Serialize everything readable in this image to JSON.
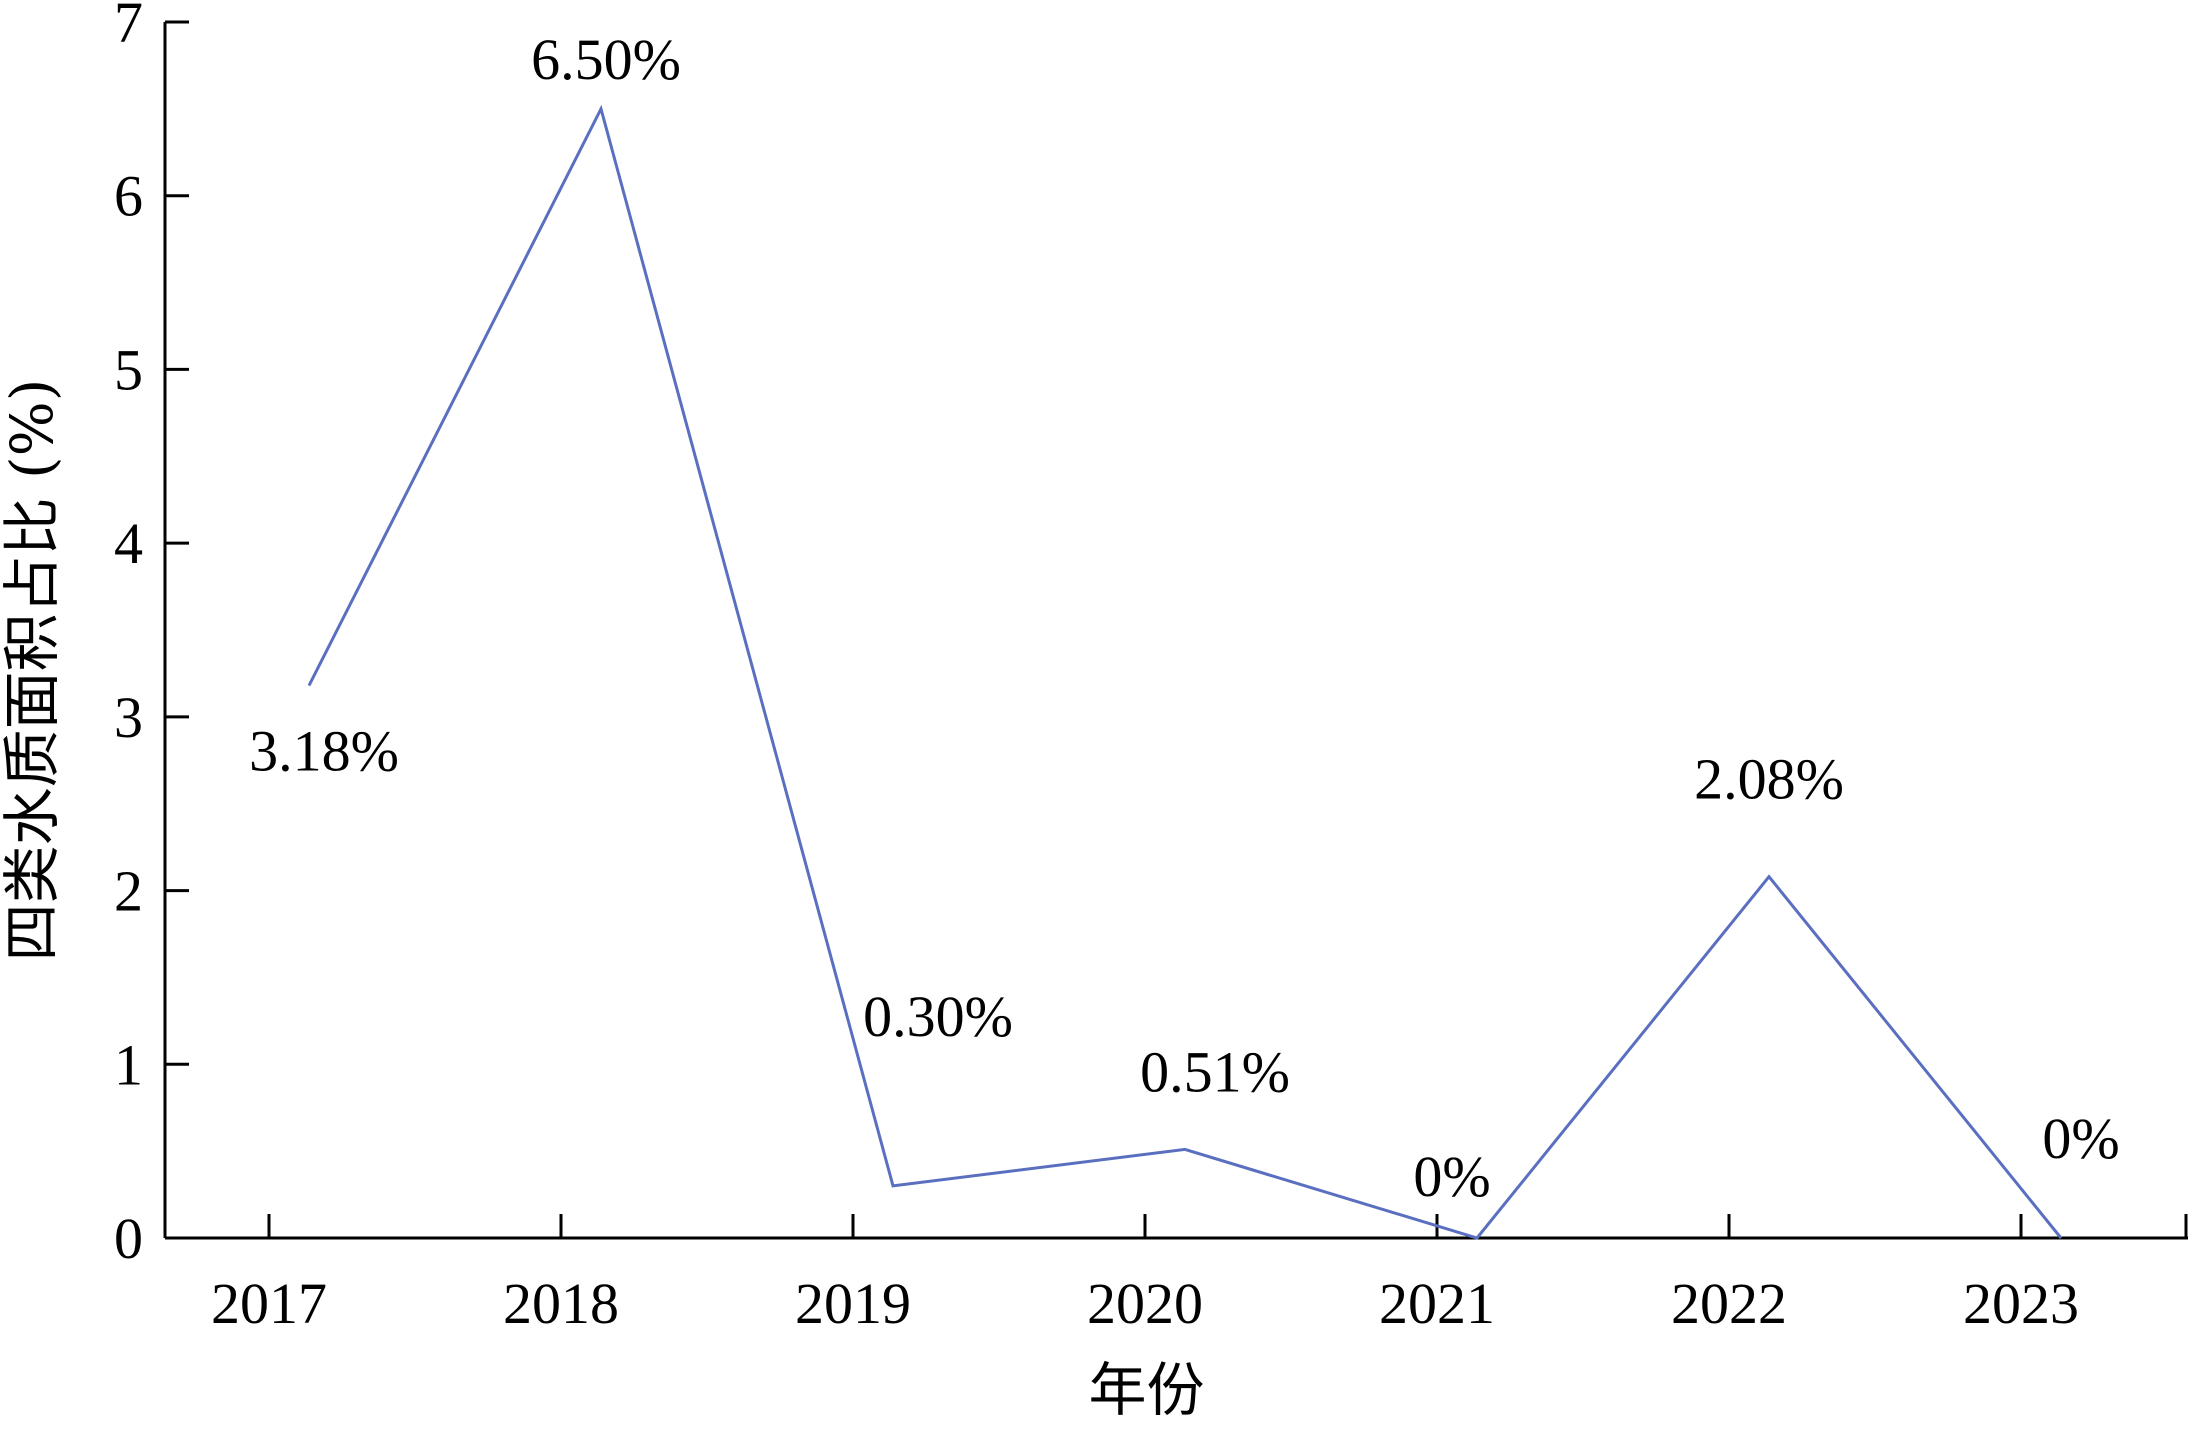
{
  "chart_data": {
    "type": "line",
    "categories": [
      "2017",
      "2018",
      "2019",
      "2020",
      "2021",
      "2022",
      "2023"
    ],
    "series": [
      {
        "values": [
          3.18,
          6.5,
          0.3,
          0.51,
          0,
          2.08,
          0
        ],
        "data_labels": [
          "3.18%",
          "6.50%",
          "0.30%",
          "0.51%",
          "0%",
          "2.08%",
          "0%"
        ],
        "color": "#5b6fc0"
      }
    ],
    "xlabel": "年份",
    "ylabel": "四类水质面积占比 (%)",
    "ylim": [
      0,
      7
    ],
    "yticks": [
      0,
      1,
      2,
      3,
      4,
      5,
      6,
      7
    ],
    "grid": false,
    "legend": "none"
  }
}
